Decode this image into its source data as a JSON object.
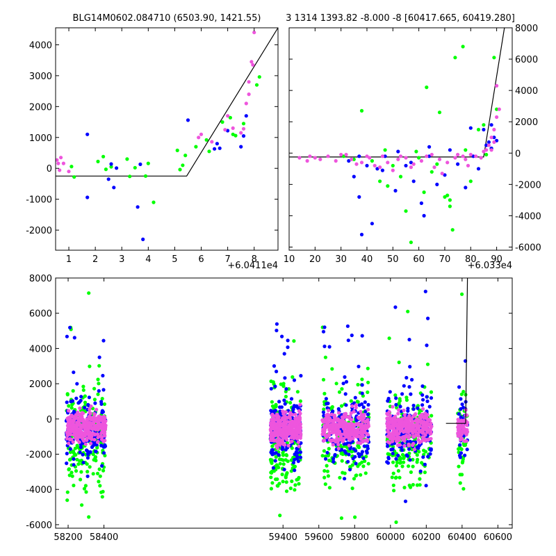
{
  "colors": {
    "green": "#00ff00",
    "blue": "#0000ff",
    "pink": "#ee55dd",
    "line": "#000000",
    "frame": "#000000"
  },
  "chart_data": [
    {
      "type": "scatter",
      "panel": "top-left",
      "title": "BLG14M0602.084710 (6503.90, 1421.55)",
      "xlim": [
        0.5,
        8.9
      ],
      "ylim": [
        -2650,
        4550
      ],
      "xticks": [
        "1",
        "2",
        "3",
        "4",
        "5",
        "6",
        "7",
        "8"
      ],
      "yticks": [
        "-2000",
        "-1000",
        "0",
        "1000",
        "2000",
        "3000",
        "4000"
      ],
      "x_offset_label": "+6.0411e4",
      "model_line": {
        "x": [
          0.5,
          5.45,
          8.9
        ],
        "y": [
          -250,
          -250,
          4550
        ]
      },
      "series": [
        {
          "color": "green",
          "points": [
            [
              1.1,
              60
            ],
            [
              1.2,
              -280
            ],
            [
              2.1,
              220
            ],
            [
              2.3,
              380
            ],
            [
              2.4,
              -30
            ],
            [
              2.6,
              50
            ],
            [
              3.2,
              300
            ],
            [
              3.3,
              -260
            ],
            [
              3.5,
              20
            ],
            [
              3.9,
              -250
            ],
            [
              4.0,
              160
            ],
            [
              4.2,
              -1100
            ],
            [
              5.1,
              580
            ],
            [
              5.3,
              100
            ],
            [
              5.4,
              420
            ],
            [
              5.8,
              700
            ],
            [
              6.2,
              920
            ],
            [
              6.3,
              550
            ],
            [
              6.8,
              1500
            ],
            [
              7.1,
              1640
            ],
            [
              7.2,
              1100
            ],
            [
              7.3,
              1060
            ],
            [
              7.6,
              1450
            ],
            [
              8.1,
              2700
            ],
            [
              8.2,
              2960
            ],
            [
              5.2,
              -40
            ]
          ]
        },
        {
          "color": "blue",
          "points": [
            [
              1.7,
              1100
            ],
            [
              1.7,
              -940
            ],
            [
              2.5,
              -350
            ],
            [
              2.7,
              -620
            ],
            [
              2.8,
              10
            ],
            [
              3.6,
              -1250
            ],
            [
              3.7,
              130
            ],
            [
              3.8,
              -2300
            ],
            [
              5.5,
              1560
            ],
            [
              6.5,
              630
            ],
            [
              6.6,
              800
            ],
            [
              6.7,
              650
            ],
            [
              7.0,
              1220
            ],
            [
              7.5,
              700
            ],
            [
              7.6,
              1050
            ],
            [
              7.7,
              1700
            ],
            [
              2.6,
              140
            ]
          ]
        },
        {
          "color": "pink",
          "points": [
            [
              0.55,
              270
            ],
            [
              0.6,
              160
            ],
            [
              0.65,
              -60
            ],
            [
              0.7,
              350
            ],
            [
              0.8,
              160
            ],
            [
              1.0,
              -100
            ],
            [
              5.9,
              1000
            ],
            [
              6.0,
              1100
            ],
            [
              6.4,
              860
            ],
            [
              6.9,
              1250
            ],
            [
              7.0,
              1700
            ],
            [
              7.2,
              1300
            ],
            [
              7.6,
              1280
            ],
            [
              7.7,
              2100
            ],
            [
              7.8,
              2800
            ],
            [
              7.9,
              3450
            ],
            [
              7.95,
              3350
            ],
            [
              8.0,
              4400
            ],
            [
              7.8,
              2400
            ],
            [
              7.5,
              1150
            ]
          ]
        }
      ]
    },
    {
      "type": "scatter",
      "panel": "top-right",
      "title": "3 1314 1393.82 -8.000 -8 [60417.665, 60419.280]",
      "xlim": [
        10,
        96
      ],
      "ylim": [
        -6200,
        8000
      ],
      "xticks": [
        "10",
        "20",
        "30",
        "40",
        "50",
        "60",
        "70",
        "80",
        "90"
      ],
      "yticks": [
        "-6000",
        "-4000",
        "-2000",
        "0",
        "2000",
        "4000",
        "6000",
        "8000"
      ],
      "x_offset_label": "+6.033e4",
      "yaxis_side": "right",
      "model_line": {
        "x": [
          10,
          85,
          93
        ],
        "y": [
          -250,
          -250,
          8000
        ]
      },
      "series": [
        {
          "color": "green",
          "points": [
            [
              38,
              2700
            ],
            [
              42,
              -500
            ],
            [
              45,
              -1800
            ],
            [
              48,
              -2100
            ],
            [
              55,
              -3700
            ],
            [
              57,
              -5700
            ],
            [
              62,
              -2500
            ],
            [
              63,
              4200
            ],
            [
              67,
              -700
            ],
            [
              70,
              -2800
            ],
            [
              71,
              -2700
            ],
            [
              72,
              -3000
            ],
            [
              72,
              -3400
            ],
            [
              73,
              -4900
            ],
            [
              74,
              6100
            ],
            [
              77,
              6800
            ],
            [
              80,
              -1800
            ],
            [
              83,
              1500
            ],
            [
              85,
              1800
            ],
            [
              89,
              6100
            ],
            [
              35,
              -400
            ],
            [
              65,
              -1200
            ],
            [
              50,
              -800
            ],
            [
              59,
              100
            ],
            [
              78,
              200
            ],
            [
              88,
              300
            ],
            [
              31,
              -200
            ],
            [
              60,
              -300
            ],
            [
              68,
              2600
            ],
            [
              86,
              -100
            ],
            [
              90,
              2800
            ],
            [
              47,
              200
            ],
            [
              53,
              -1500
            ]
          ]
        },
        {
          "color": "blue",
          "points": [
            [
              35,
              -1500
            ],
            [
              37,
              -2800
            ],
            [
              38,
              -5200
            ],
            [
              40,
              -800
            ],
            [
              42,
              -4500
            ],
            [
              44,
              -1000
            ],
            [
              46,
              -1100
            ],
            [
              51,
              -2400
            ],
            [
              55,
              -800
            ],
            [
              58,
              -1800
            ],
            [
              61,
              -3200
            ],
            [
              62,
              -4000
            ],
            [
              64,
              -200
            ],
            [
              67,
              -2000
            ],
            [
              70,
              -1400
            ],
            [
              75,
              -700
            ],
            [
              78,
              -2200
            ],
            [
              80,
              1600
            ],
            [
              83,
              -1000
            ],
            [
              85,
              1500
            ],
            [
              88,
              1800
            ],
            [
              87,
              700
            ],
            [
              86,
              500
            ],
            [
              89,
              1000
            ],
            [
              88,
              300
            ],
            [
              33,
              -500
            ],
            [
              47,
              -200
            ],
            [
              57,
              -600
            ],
            [
              64,
              400
            ],
            [
              72,
              200
            ],
            [
              90,
              800
            ],
            [
              37,
              -200
            ],
            [
              52,
              100
            ],
            [
              81,
              -200
            ]
          ]
        },
        {
          "color": "pink",
          "points": [
            [
              14,
              -300
            ],
            [
              17,
              -500
            ],
            [
              18,
              -200
            ],
            [
              22,
              -400
            ],
            [
              25,
              -200
            ],
            [
              28,
              -500
            ],
            [
              32,
              -100
            ],
            [
              34,
              -400
            ],
            [
              38,
              -600
            ],
            [
              41,
              -300
            ],
            [
              43,
              -800
            ],
            [
              46,
              -200
            ],
            [
              48,
              -600
            ],
            [
              50,
              -1100
            ],
            [
              52,
              -400
            ],
            [
              55,
              -300
            ],
            [
              58,
              -700
            ],
            [
              61,
              -500
            ],
            [
              63,
              -200
            ],
            [
              66,
              -900
            ],
            [
              68,
              -400
            ],
            [
              71,
              -600
            ],
            [
              74,
              -300
            ],
            [
              77,
              -200
            ],
            [
              80,
              -100
            ],
            [
              82,
              -200
            ],
            [
              84,
              -300
            ],
            [
              86,
              200
            ],
            [
              87,
              500
            ],
            [
              88,
              1000
            ],
            [
              89,
              1500
            ],
            [
              90,
              2300
            ],
            [
              90,
              4300
            ],
            [
              91,
              2800
            ],
            [
              89,
              700
            ],
            [
              85,
              100
            ],
            [
              36,
              -700
            ],
            [
              45,
              -900
            ],
            [
              57,
              -900
            ],
            [
              69,
              -1300
            ],
            [
              79,
              -800
            ],
            [
              20,
              -300
            ],
            [
              30,
              -100
            ],
            [
              40,
              -200
            ],
            [
              53,
              -200
            ],
            [
              65,
              -100
            ],
            [
              75,
              -100
            ],
            [
              88,
              200
            ],
            [
              78,
              -400
            ]
          ]
        }
      ]
    },
    {
      "type": "scatter",
      "panel": "bottom",
      "xlim": [
        58130,
        60680
      ],
      "ylim": [
        -6200,
        8000
      ],
      "xticks": [
        "58200",
        "58400",
        "59400",
        "59600",
        "59800",
        "60000",
        "60200",
        "60400",
        "60600"
      ],
      "yticks": [
        "-6000",
        "-4000",
        "-2000",
        "0",
        "2000",
        "4000",
        "6000",
        "8000"
      ],
      "model_line": {
        "x": [
          60310,
          60420,
          60430
        ],
        "y": [
          -250,
          -250,
          8000
        ]
      },
      "seasons": [
        {
          "x": [
            58190,
            58410
          ]
        },
        {
          "x": [
            59330,
            59500
          ]
        },
        {
          "x": [
            59620,
            59880
          ]
        },
        {
          "x": [
            59980,
            60230
          ]
        },
        {
          "x": [
            60375,
            60430
          ]
        }
      ]
    }
  ]
}
